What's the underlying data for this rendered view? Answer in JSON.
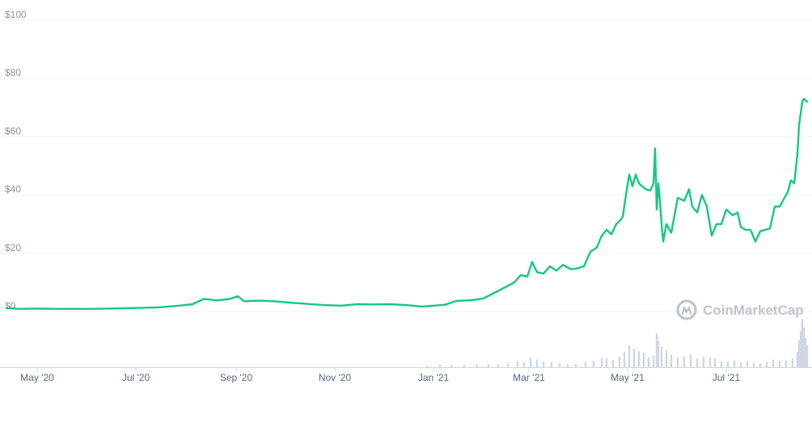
{
  "watermark": {
    "text": "CoinMarketCap",
    "icon": "coinmarketcap-logo-icon"
  },
  "chart_data": {
    "type": "line",
    "title": "",
    "xlabel": "",
    "ylabel": "",
    "ylim": [
      0,
      100
    ],
    "y_ticks": [
      "$0",
      "$20",
      "$40",
      "$60",
      "$80",
      "$100"
    ],
    "y_tick_values": [
      0,
      20,
      40,
      60,
      80,
      100
    ],
    "x_ticks": [
      "May '20",
      "Jul '20",
      "Sep '20",
      "Nov '20",
      "Jan '21",
      "Mar '21",
      "May '21",
      "Jul '21"
    ],
    "x_tick_dates": [
      "2020-05-01",
      "2020-07-01",
      "2020-09-01",
      "2020-11-01",
      "2021-01-01",
      "2021-03-01",
      "2021-05-01",
      "2021-07-01"
    ],
    "x_range": [
      "2020-04-12",
      "2021-08-21"
    ],
    "grid": true,
    "line_color": "#16c784",
    "series": [
      {
        "name": "",
        "points": [
          [
            "2020-04-12",
            1.2
          ],
          [
            "2020-04-20",
            0.9
          ],
          [
            "2020-05-01",
            1.0
          ],
          [
            "2020-05-15",
            0.9
          ],
          [
            "2020-06-01",
            0.9
          ],
          [
            "2020-06-15",
            1.0
          ],
          [
            "2020-07-01",
            1.2
          ],
          [
            "2020-07-15",
            1.4
          ],
          [
            "2020-07-28",
            2.0
          ],
          [
            "2020-08-05",
            2.5
          ],
          [
            "2020-08-12",
            4.3
          ],
          [
            "2020-08-20",
            3.8
          ],
          [
            "2020-08-28",
            4.3
          ],
          [
            "2020-09-02",
            5.2
          ],
          [
            "2020-09-06",
            3.5
          ],
          [
            "2020-09-15",
            3.7
          ],
          [
            "2020-09-25",
            3.5
          ],
          [
            "2020-10-05",
            3.0
          ],
          [
            "2020-10-15",
            2.6
          ],
          [
            "2020-10-25",
            2.2
          ],
          [
            "2020-11-05",
            2.0
          ],
          [
            "2020-11-15",
            2.5
          ],
          [
            "2020-11-25",
            2.4
          ],
          [
            "2020-12-05",
            2.5
          ],
          [
            "2020-12-15",
            2.2
          ],
          [
            "2020-12-25",
            1.7
          ],
          [
            "2021-01-01",
            2.0
          ],
          [
            "2021-01-08",
            2.3
          ],
          [
            "2021-01-15",
            3.6
          ],
          [
            "2021-01-25",
            3.9
          ],
          [
            "2021-02-01",
            4.5
          ],
          [
            "2021-02-08",
            6.5
          ],
          [
            "2021-02-15",
            8.5
          ],
          [
            "2021-02-20",
            10.0
          ],
          [
            "2021-02-24",
            12.5
          ],
          [
            "2021-02-28",
            12.0
          ],
          [
            "2021-03-03",
            17.0
          ],
          [
            "2021-03-06",
            13.5
          ],
          [
            "2021-03-10",
            13.0
          ],
          [
            "2021-03-14",
            15.5
          ],
          [
            "2021-03-18",
            14.0
          ],
          [
            "2021-03-22",
            16.0
          ],
          [
            "2021-03-27",
            14.5
          ],
          [
            "2021-03-31",
            14.8
          ],
          [
            "2021-04-04",
            15.5
          ],
          [
            "2021-04-08",
            20.5
          ],
          [
            "2021-04-12",
            22.0
          ],
          [
            "2021-04-15",
            26.0
          ],
          [
            "2021-04-18",
            28.0
          ],
          [
            "2021-04-21",
            26.5
          ],
          [
            "2021-04-24",
            30.0
          ],
          [
            "2021-04-26",
            31.0
          ],
          [
            "2021-04-28",
            32.5
          ],
          [
            "2021-04-30",
            40.0
          ],
          [
            "2021-05-02",
            47.0
          ],
          [
            "2021-05-04",
            43.0
          ],
          [
            "2021-05-06",
            47.0
          ],
          [
            "2021-05-08",
            44.0
          ],
          [
            "2021-05-10",
            43.0
          ],
          [
            "2021-05-12",
            42.0
          ],
          [
            "2021-05-15",
            41.5
          ],
          [
            "2021-05-17",
            44.0
          ],
          [
            "2021-05-18",
            56.0
          ],
          [
            "2021-05-19",
            35.0
          ],
          [
            "2021-05-20",
            44.0
          ],
          [
            "2021-05-21",
            38.0
          ],
          [
            "2021-05-22",
            30.0
          ],
          [
            "2021-05-23",
            24.0
          ],
          [
            "2021-05-25",
            30.0
          ],
          [
            "2021-05-28",
            27.0
          ],
          [
            "2021-06-01",
            39.0
          ],
          [
            "2021-06-05",
            38.0
          ],
          [
            "2021-06-08",
            42.0
          ],
          [
            "2021-06-10",
            36.0
          ],
          [
            "2021-06-13",
            34.0
          ],
          [
            "2021-06-16",
            40.0
          ],
          [
            "2021-06-19",
            36.0
          ],
          [
            "2021-06-22",
            26.0
          ],
          [
            "2021-06-25",
            30.0
          ],
          [
            "2021-06-28",
            30.0
          ],
          [
            "2021-07-01",
            35.0
          ],
          [
            "2021-07-05",
            33.0
          ],
          [
            "2021-07-08",
            34.0
          ],
          [
            "2021-07-10",
            29.0
          ],
          [
            "2021-07-13",
            28.0
          ],
          [
            "2021-07-16",
            28.0
          ],
          [
            "2021-07-19",
            24.0
          ],
          [
            "2021-07-22",
            27.5
          ],
          [
            "2021-07-25",
            28.0
          ],
          [
            "2021-07-28",
            28.5
          ],
          [
            "2021-07-31",
            36.0
          ],
          [
            "2021-08-03",
            36.0
          ],
          [
            "2021-08-06",
            39.0
          ],
          [
            "2021-08-08",
            41.0
          ],
          [
            "2021-08-10",
            45.0
          ],
          [
            "2021-08-12",
            44.0
          ],
          [
            "2021-08-14",
            54.0
          ],
          [
            "2021-08-15",
            64.0
          ],
          [
            "2021-08-16",
            68.0
          ],
          [
            "2021-08-17",
            72.0
          ],
          [
            "2021-08-18",
            73.0
          ],
          [
            "2021-08-20",
            72.0
          ]
        ]
      }
    ],
    "volume_color": "#cfd6e4",
    "volume_relative": [
      [
        "2020-12-28",
        0.03
      ],
      [
        "2021-01-05",
        0.05
      ],
      [
        "2021-01-12",
        0.04
      ],
      [
        "2021-01-20",
        0.05
      ],
      [
        "2021-01-28",
        0.05
      ],
      [
        "2021-02-04",
        0.06
      ],
      [
        "2021-02-10",
        0.06
      ],
      [
        "2021-02-16",
        0.08
      ],
      [
        "2021-02-22",
        0.12
      ],
      [
        "2021-02-26",
        0.1
      ],
      [
        "2021-03-02",
        0.2
      ],
      [
        "2021-03-06",
        0.16
      ],
      [
        "2021-03-10",
        0.12
      ],
      [
        "2021-03-15",
        0.1
      ],
      [
        "2021-03-20",
        0.08
      ],
      [
        "2021-03-25",
        0.06
      ],
      [
        "2021-03-30",
        0.06
      ],
      [
        "2021-04-05",
        0.1
      ],
      [
        "2021-04-10",
        0.13
      ],
      [
        "2021-04-15",
        0.2
      ],
      [
        "2021-04-18",
        0.18
      ],
      [
        "2021-04-22",
        0.15
      ],
      [
        "2021-04-26",
        0.22
      ],
      [
        "2021-04-29",
        0.32
      ],
      [
        "2021-05-02",
        0.45
      ],
      [
        "2021-05-05",
        0.38
      ],
      [
        "2021-05-08",
        0.33
      ],
      [
        "2021-05-11",
        0.3
      ],
      [
        "2021-05-14",
        0.2
      ],
      [
        "2021-05-17",
        0.24
      ],
      [
        "2021-05-19",
        0.7
      ],
      [
        "2021-05-20",
        0.55
      ],
      [
        "2021-05-22",
        0.42
      ],
      [
        "2021-05-25",
        0.35
      ],
      [
        "2021-05-28",
        0.25
      ],
      [
        "2021-06-01",
        0.2
      ],
      [
        "2021-06-05",
        0.22
      ],
      [
        "2021-06-09",
        0.26
      ],
      [
        "2021-06-13",
        0.18
      ],
      [
        "2021-06-17",
        0.22
      ],
      [
        "2021-06-21",
        0.2
      ],
      [
        "2021-06-24",
        0.18
      ],
      [
        "2021-06-28",
        0.12
      ],
      [
        "2021-07-02",
        0.12
      ],
      [
        "2021-07-06",
        0.14
      ],
      [
        "2021-07-10",
        0.1
      ],
      [
        "2021-07-14",
        0.12
      ],
      [
        "2021-07-18",
        0.09
      ],
      [
        "2021-07-22",
        0.08
      ],
      [
        "2021-07-26",
        0.1
      ],
      [
        "2021-07-30",
        0.16
      ],
      [
        "2021-08-03",
        0.13
      ],
      [
        "2021-08-07",
        0.14
      ],
      [
        "2021-08-11",
        0.18
      ],
      [
        "2021-08-14",
        0.32
      ],
      [
        "2021-08-15",
        0.55
      ],
      [
        "2021-08-16",
        0.75
      ],
      [
        "2021-08-17",
        1.0
      ],
      [
        "2021-08-18",
        0.82
      ],
      [
        "2021-08-19",
        0.6
      ],
      [
        "2021-08-20",
        0.45
      ]
    ]
  }
}
